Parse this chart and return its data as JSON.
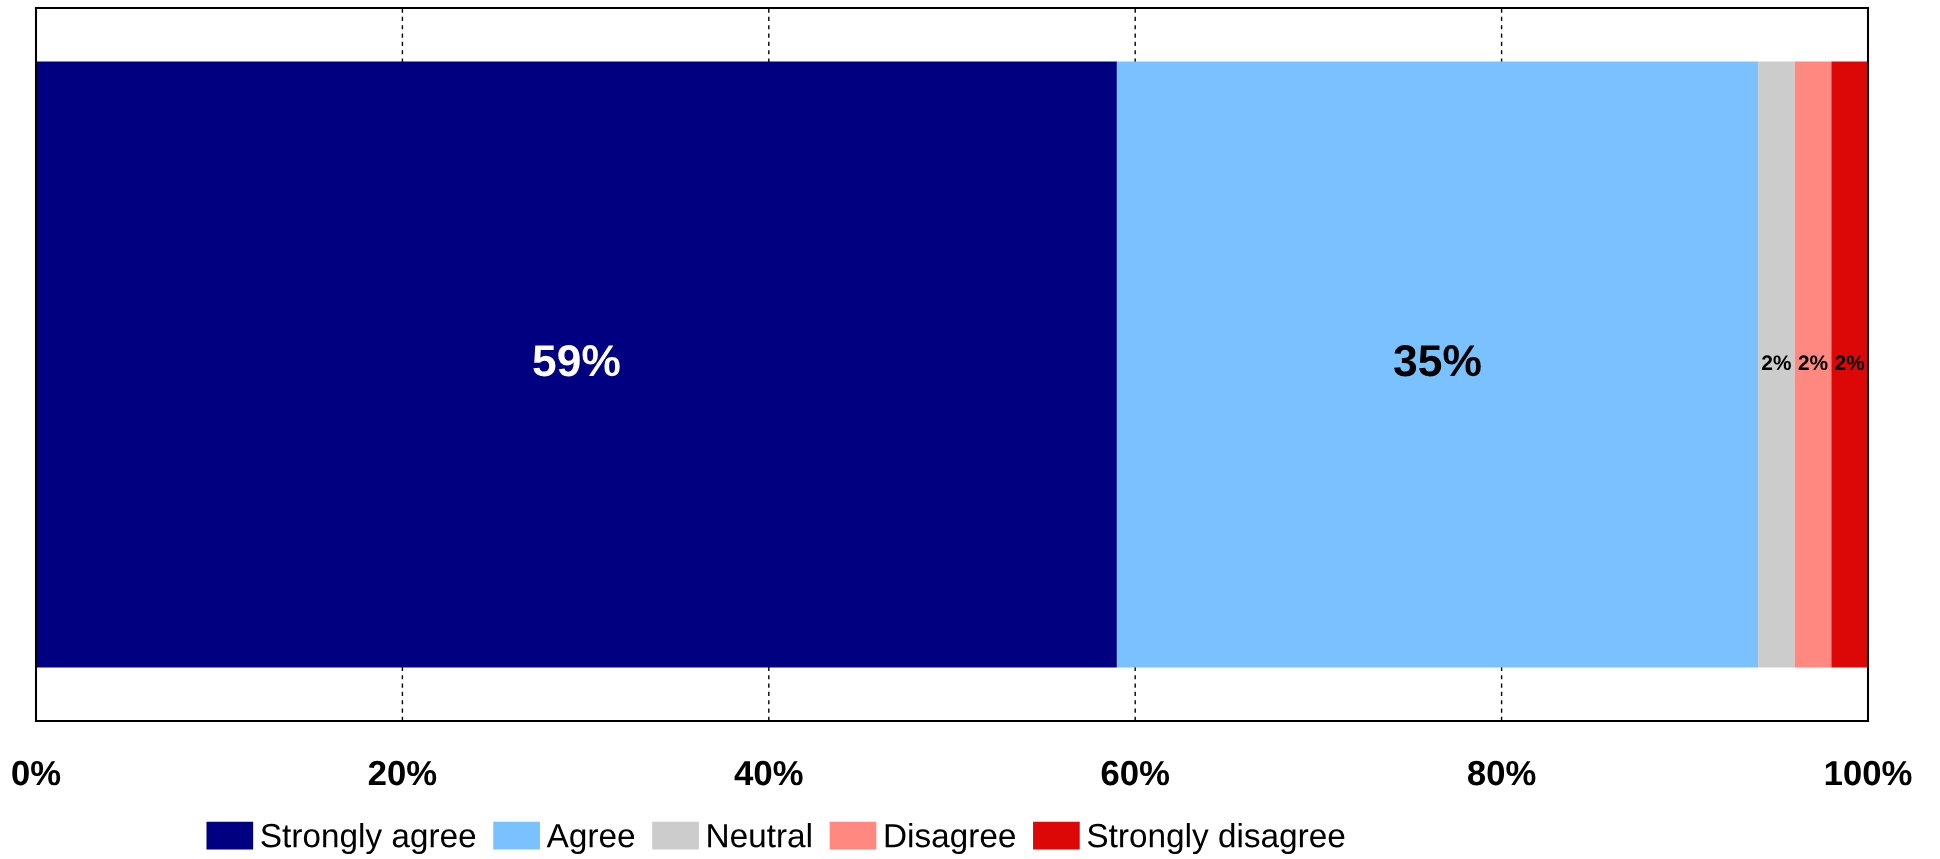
{
  "chart_data": {
    "type": "bar",
    "orientation": "horizontal",
    "stacked": true,
    "categories": [
      null
    ],
    "series": [
      {
        "name": "Strongly agree",
        "color": "#000080",
        "values": [
          59
        ],
        "value_labels": [
          "59%"
        ]
      },
      {
        "name": "Agree",
        "color": "#7ac2ff",
        "values": [
          35
        ],
        "value_labels": [
          "35%"
        ]
      },
      {
        "name": "Neutral",
        "color": "#cccccc",
        "values": [
          2
        ],
        "value_labels": [
          "2%"
        ]
      },
      {
        "name": "Disagree",
        "color": "#ff8880",
        "values": [
          2
        ],
        "value_labels": [
          "2%"
        ]
      },
      {
        "name": "Strongly disagree",
        "color": "#dc0808",
        "values": [
          2
        ],
        "value_labels": [
          "2%"
        ]
      }
    ],
    "xlim": [
      0,
      100
    ],
    "xticks": [
      {
        "value": 0,
        "label": "0%"
      },
      {
        "value": 20,
        "label": "20%"
      },
      {
        "value": 40,
        "label": "40%"
      },
      {
        "value": 60,
        "label": "60%"
      },
      {
        "value": 80,
        "label": "80%"
      },
      {
        "value": 100,
        "label": "100%"
      }
    ],
    "grid": "x",
    "line_style": "dashed",
    "legend": "bottom"
  }
}
